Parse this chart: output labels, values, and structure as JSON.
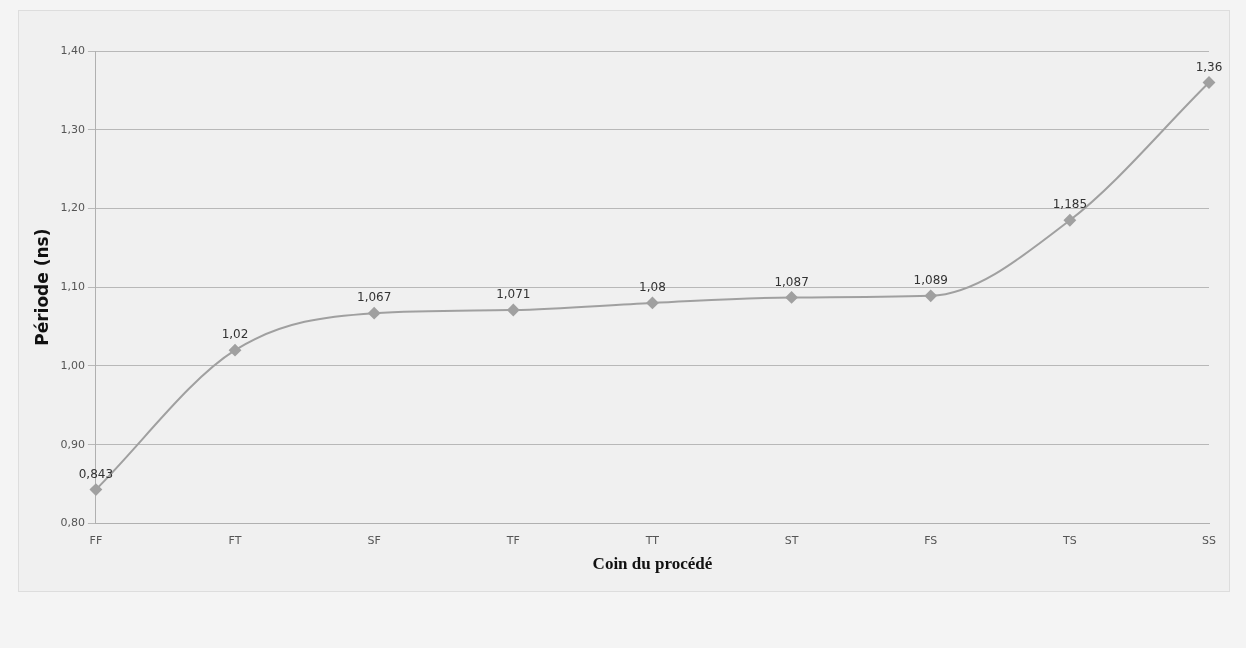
{
  "chart_data": {
    "type": "line",
    "xlabel": "Coin du procédé",
    "ylabel": "Période (ns)",
    "categories": [
      "FF",
      "FT",
      "SF",
      "TF",
      "TT",
      "ST",
      "FS",
      "TS",
      "SS"
    ],
    "series": [
      {
        "color": "#a0a0a0",
        "values": [
          0.843,
          1.02,
          1.067,
          1.071,
          1.08,
          1.087,
          1.089,
          1.185,
          1.36
        ],
        "value_labels": [
          "0,843",
          "1,02",
          "1,067",
          "1,071",
          "1,08",
          "1,087",
          "1,089",
          "1,185",
          "1,36"
        ]
      }
    ],
    "ylim": [
      0.8,
      1.4
    ],
    "yticks": [
      {
        "value": 0.8,
        "label": "0,80"
      },
      {
        "value": 0.9,
        "label": "0,90"
      },
      {
        "value": 1.0,
        "label": "1,00"
      },
      {
        "value": 1.1,
        "label": "1,10"
      },
      {
        "value": 1.2,
        "label": "1,20"
      },
      {
        "value": 1.3,
        "label": "1,30"
      },
      {
        "value": 1.4,
        "label": "1,40"
      }
    ],
    "grid": "y",
    "legend": false,
    "marker": "diamond",
    "line_style": "solid"
  }
}
